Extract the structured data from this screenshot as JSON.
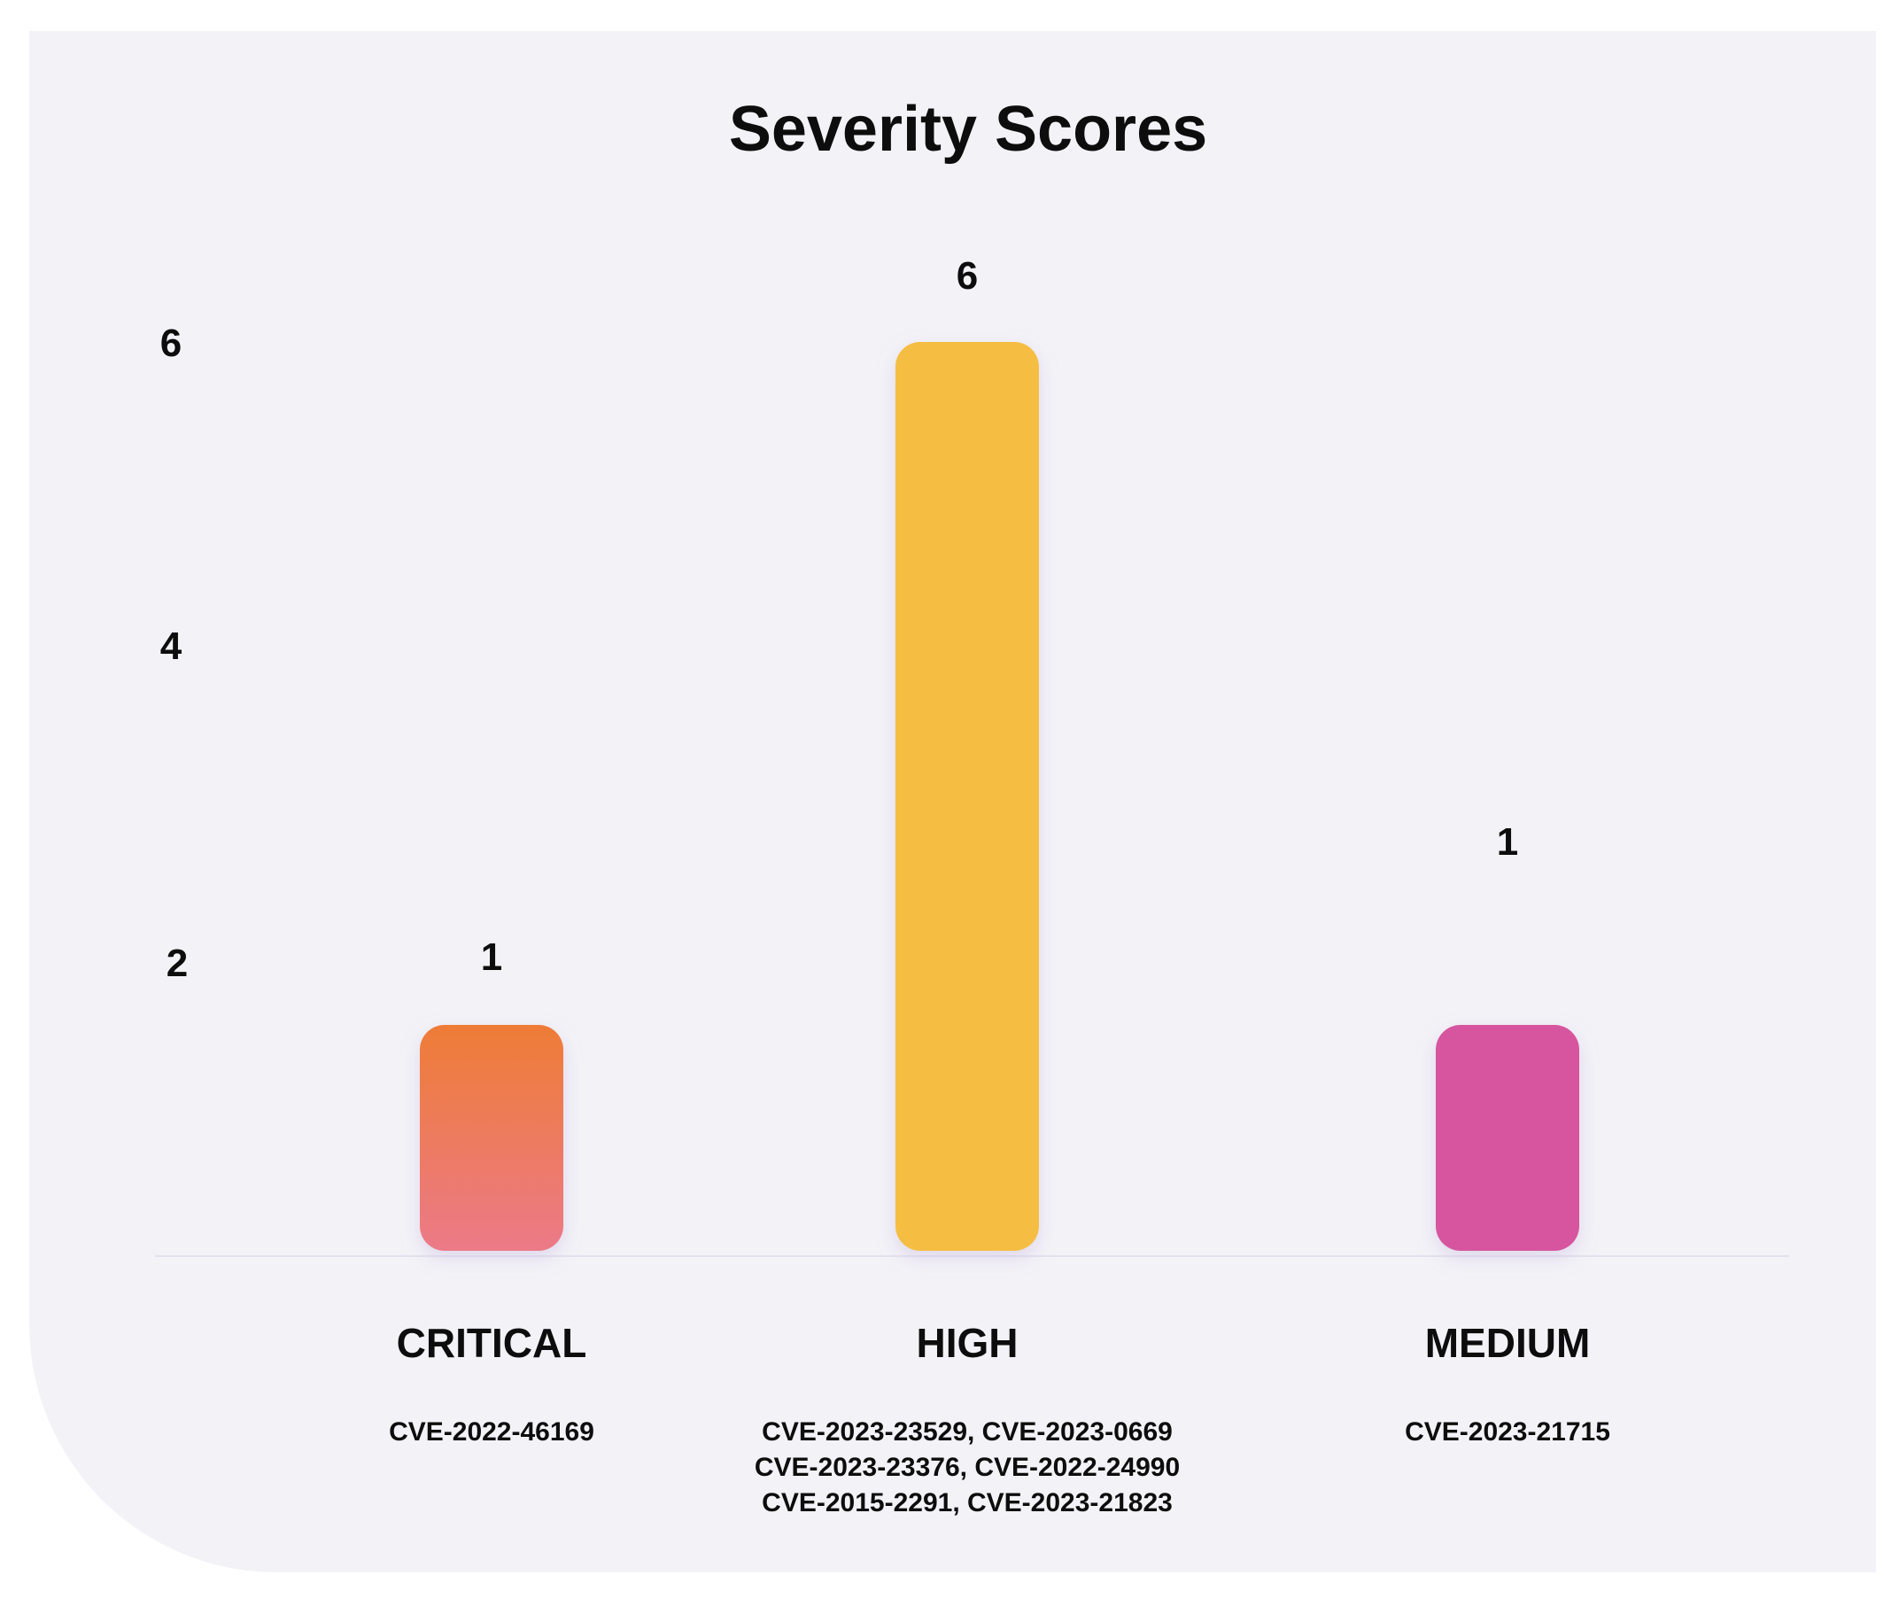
{
  "chart_data": {
    "type": "bar",
    "title": "Severity Scores",
    "xlabel": "",
    "ylabel": "",
    "categories": [
      "CRITICAL",
      "HIGH",
      "MEDIUM"
    ],
    "values": [
      1,
      6,
      1
    ],
    "data_labels": [
      "1",
      "6",
      "1"
    ],
    "category_details": [
      [
        "CVE-2022-46169"
      ],
      [
        "CVE-2023-23529, CVE-2023-0669",
        "CVE-2023-23376, CVE-2022-24990",
        "CVE-2015-2291, CVE-2023-21823"
      ],
      [
        "CVE-2023-21715"
      ]
    ],
    "yticks": [
      2,
      4,
      6
    ],
    "ylim": [
      0,
      6
    ],
    "grid": true,
    "legend": "none",
    "colors": {
      "critical_top": "#ee7b36",
      "critical_bottom": "#ec7a88",
      "high": "#f5be43",
      "medium": "#d6559e",
      "grid_left": "#f0cfc6",
      "grid_mid": "#e6c7dd",
      "grid_right": "#c7c3dc",
      "panel": "#f3f2f7"
    }
  }
}
